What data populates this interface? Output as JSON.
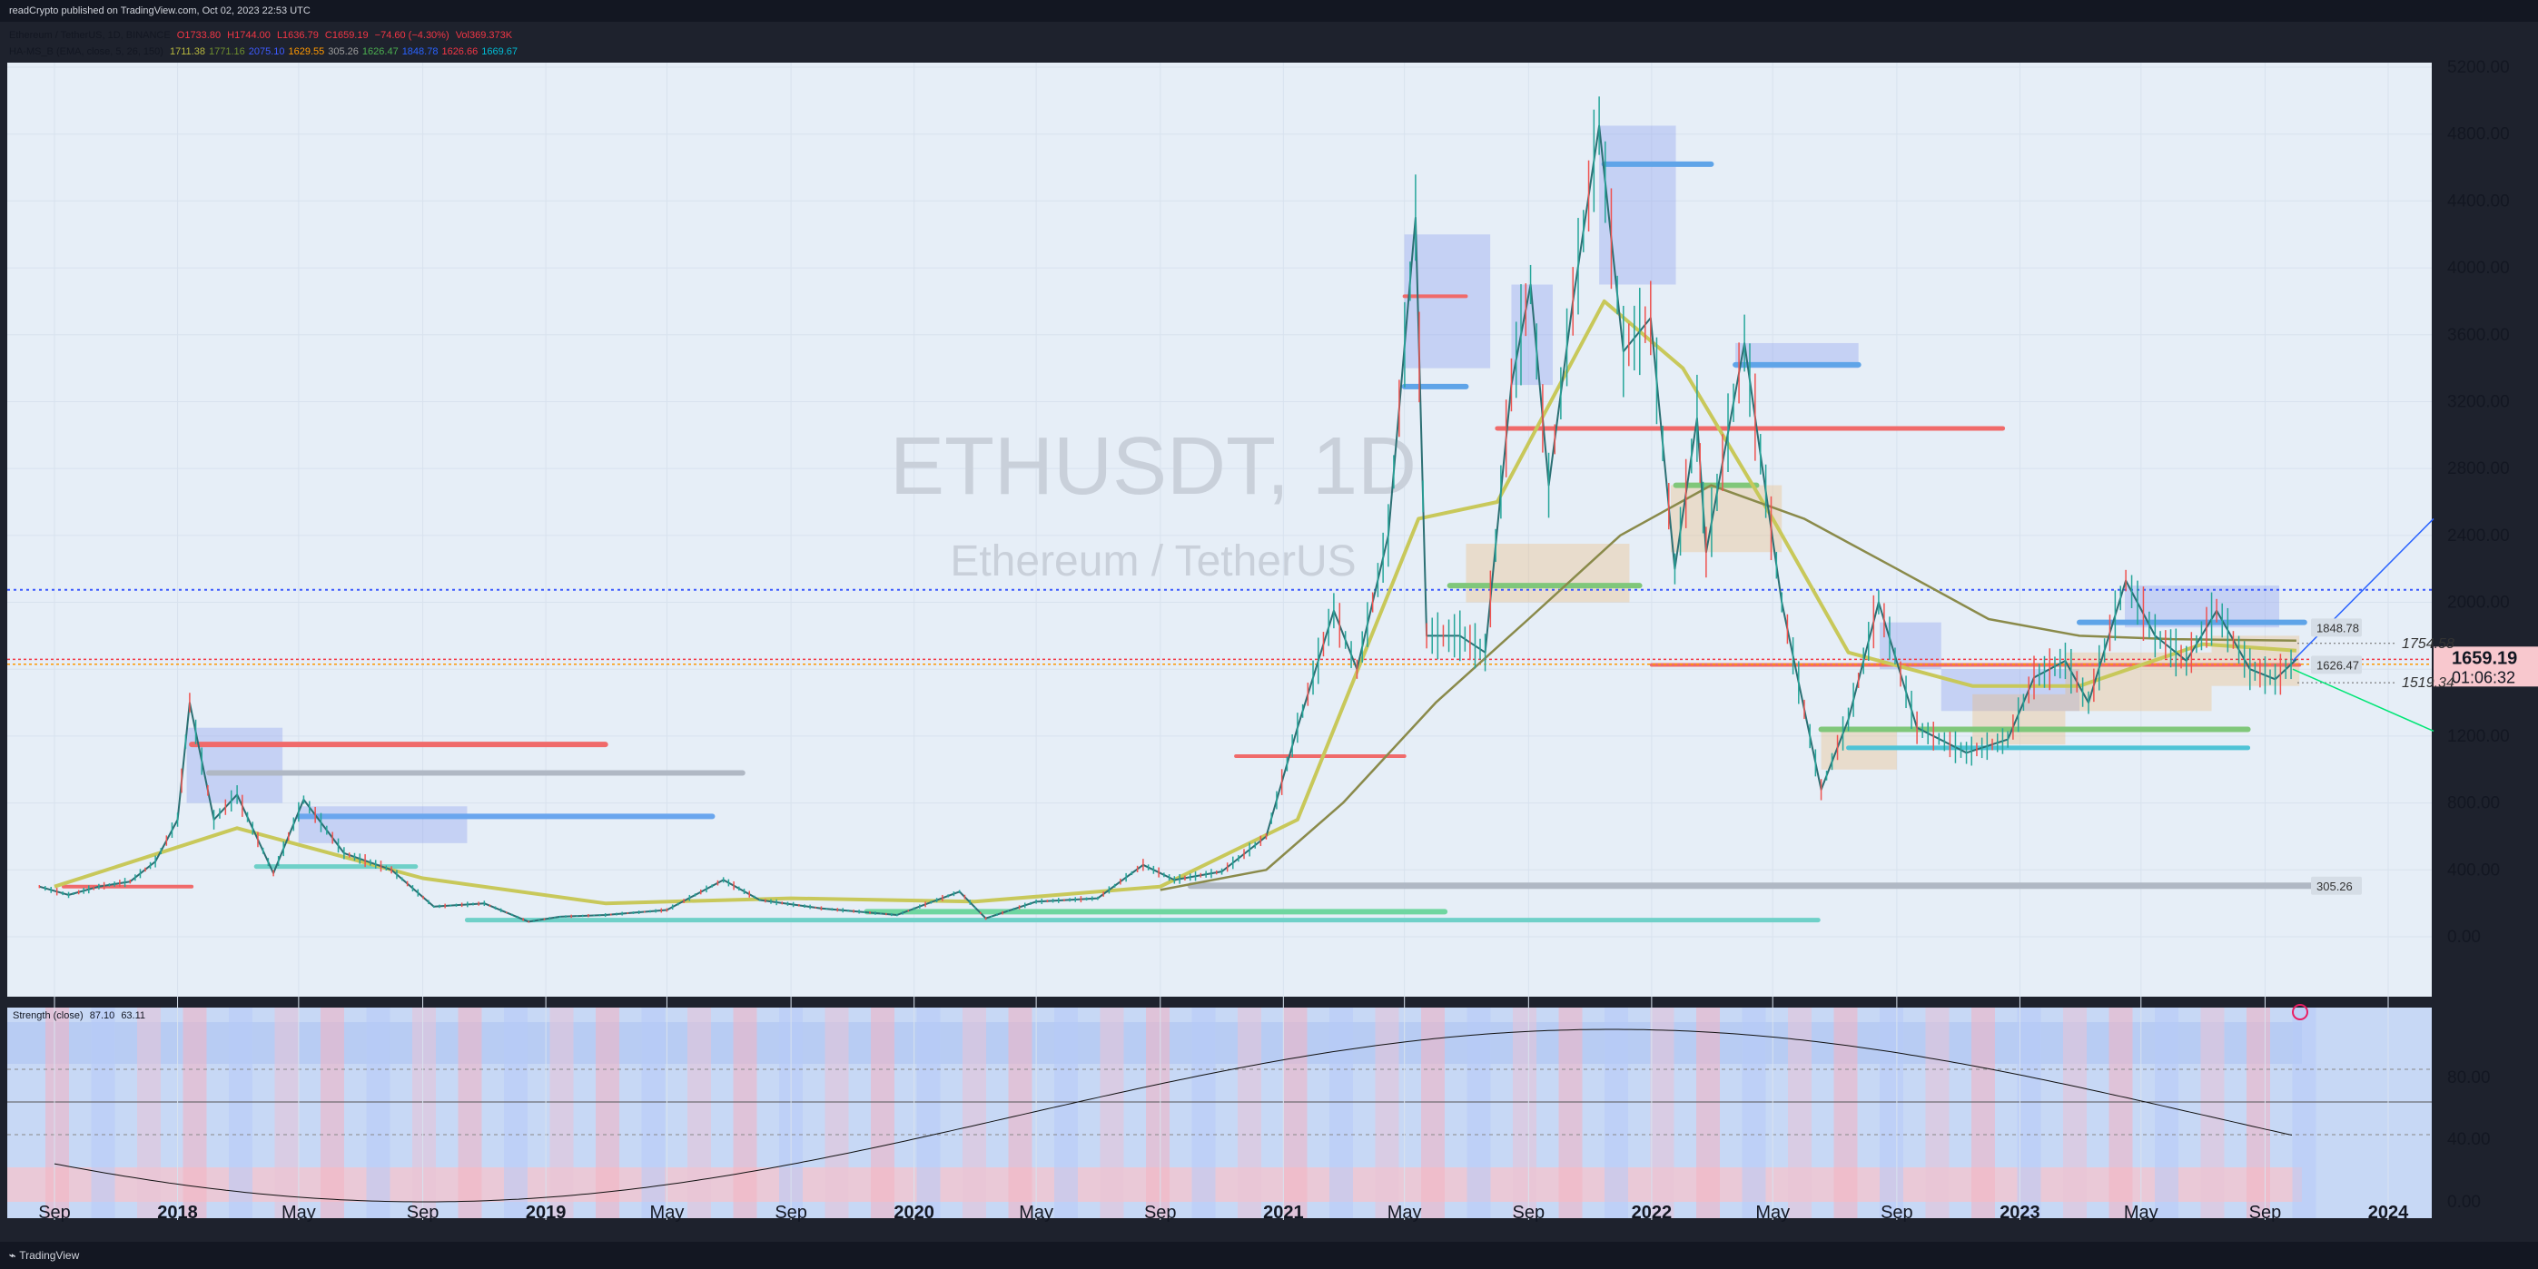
{
  "header": {
    "text": "readCrypto published on TradingView.com, Oct 02, 2023 22:53 UTC"
  },
  "footer": {
    "text": "TradingView"
  },
  "legend": {
    "symbol": "Ethereum / TetherUS, 1D, BINANCE",
    "o": "O1733.80",
    "h": "H1744.00",
    "l": "L1636.79",
    "c": "C1659.19",
    "chg": "−74.60 (−4.30%)",
    "vol": "Vol369.373K",
    "indicator": "HA-MS_B (EMA, close, 5, 26, 150)",
    "ind_values": [
      {
        "v": "1711.38",
        "color": "#b7b73e"
      },
      {
        "v": "1771.16",
        "color": "#6f8f2f"
      },
      {
        "v": "2075.10",
        "color": "#3d5afe"
      },
      {
        "v": "1629.55",
        "color": "#ff9800"
      },
      {
        "v": "305.26",
        "color": "#9e9e9e"
      },
      {
        "v": "1626.47",
        "color": "#4caf50"
      },
      {
        "v": "1848.78",
        "color": "#2962ff"
      },
      {
        "v": "1626.66",
        "color": "#f23645"
      },
      {
        "v": "1669.67",
        "color": "#00bcd4"
      }
    ]
  },
  "watermark": {
    "symbol": "ETHUSDT, 1D",
    "name": "Ethereum / TetherUS"
  },
  "price_badge": {
    "price": "1659.19",
    "countdown": "01:06:32"
  },
  "level_labels": [
    {
      "text": "1754.58",
      "price": 1754.58
    },
    {
      "text": "1519.34",
      "price": 1519.34
    }
  ],
  "box_labels": [
    {
      "text": "1848.78",
      "price": 1848.78
    },
    {
      "text": "1626.47",
      "price": 1626.47
    },
    {
      "text": "305.26",
      "price": 305.26
    }
  ],
  "strength": {
    "label": "Strength (close)",
    "v1": "87.10",
    "v2": "63.11"
  },
  "chart_data": {
    "type": "line",
    "title": "ETHUSDT, 1D",
    "y_axis": {
      "ticks": [
        "5200.00",
        "4800.00",
        "4400.00",
        "4000.00",
        "3600.00",
        "3200.00",
        "2800.00",
        "2400.00",
        "2000.00",
        "1600.00",
        "1200.00",
        "800.00",
        "400.00",
        "0.00"
      ],
      "ylim": [
        -180,
        5380
      ]
    },
    "x_axis": {
      "ticks": [
        "Sep",
        "2018",
        "May",
        "Sep",
        "2019",
        "May",
        "Sep",
        "2020",
        "May",
        "Sep",
        "2021",
        "May",
        "Sep",
        "2022",
        "May",
        "Sep",
        "2023",
        "May",
        "Sep",
        "2024"
      ]
    },
    "price_series": {
      "name": "ETHUSDT",
      "points": [
        [
          "2017-08-17",
          300
        ],
        [
          "2017-09-15",
          250
        ],
        [
          "2017-10-15",
          300
        ],
        [
          "2017-11-15",
          330
        ],
        [
          "2017-12-10",
          450
        ],
        [
          "2018-01-01",
          700
        ],
        [
          "2018-01-13",
          1400
        ],
        [
          "2018-02-06",
          700
        ],
        [
          "2018-03-01",
          850
        ],
        [
          "2018-04-06",
          380
        ],
        [
          "2018-05-06",
          820
        ],
        [
          "2018-06-15",
          500
        ],
        [
          "2018-08-01",
          400
        ],
        [
          "2018-09-12",
          180
        ],
        [
          "2018-11-01",
          200
        ],
        [
          "2018-12-15",
          90
        ],
        [
          "2019-01-15",
          120
        ],
        [
          "2019-03-01",
          130
        ],
        [
          "2019-05-01",
          160
        ],
        [
          "2019-06-26",
          340
        ],
        [
          "2019-08-01",
          220
        ],
        [
          "2019-10-01",
          170
        ],
        [
          "2019-12-15",
          130
        ],
        [
          "2020-02-15",
          270
        ],
        [
          "2020-03-12",
          110
        ],
        [
          "2020-05-01",
          210
        ],
        [
          "2020-07-01",
          230
        ],
        [
          "2020-08-15",
          430
        ],
        [
          "2020-09-15",
          340
        ],
        [
          "2020-11-01",
          390
        ],
        [
          "2020-12-15",
          600
        ],
        [
          "2021-01-15",
          1250
        ],
        [
          "2021-02-20",
          1950
        ],
        [
          "2021-03-15",
          1600
        ],
        [
          "2021-04-15",
          2400
        ],
        [
          "2021-05-12",
          4300
        ],
        [
          "2021-05-23",
          1800
        ],
        [
          "2021-06-25",
          1800
        ],
        [
          "2021-07-20",
          1700
        ],
        [
          "2021-08-15",
          3300
        ],
        [
          "2021-09-03",
          3900
        ],
        [
          "2021-09-21",
          2700
        ],
        [
          "2021-10-15",
          3800
        ],
        [
          "2021-11-10",
          4850
        ],
        [
          "2021-12-04",
          3500
        ],
        [
          "2021-12-31",
          3700
        ],
        [
          "2022-01-24",
          2200
        ],
        [
          "2022-02-15",
          3100
        ],
        [
          "2022-02-24",
          2300
        ],
        [
          "2022-04-03",
          3550
        ],
        [
          "2022-05-10",
          2000
        ],
        [
          "2022-06-18",
          880
        ],
        [
          "2022-07-15",
          1300
        ],
        [
          "2022-08-14",
          2000
        ],
        [
          "2022-09-21",
          1250
        ],
        [
          "2022-11-09",
          1100
        ],
        [
          "2022-12-20",
          1180
        ],
        [
          "2023-01-15",
          1550
        ],
        [
          "2023-02-15",
          1650
        ],
        [
          "2023-03-10",
          1400
        ],
        [
          "2023-04-16",
          2130
        ],
        [
          "2023-05-15",
          1800
        ],
        [
          "2023-06-15",
          1650
        ],
        [
          "2023-07-15",
          1950
        ],
        [
          "2023-08-17",
          1600
        ],
        [
          "2023-09-11",
          1540
        ],
        [
          "2023-10-02",
          1659
        ]
      ]
    },
    "ema_slow": {
      "name": "EMA",
      "points": [
        [
          "2017-09-01",
          300
        ],
        [
          "2018-03-01",
          650
        ],
        [
          "2018-09-01",
          350
        ],
        [
          "2019-03-01",
          200
        ],
        [
          "2019-09-01",
          230
        ],
        [
          "2020-03-01",
          210
        ],
        [
          "2020-09-01",
          300
        ],
        [
          "2021-01-15",
          700
        ],
        [
          "2021-05-15",
          2500
        ],
        [
          "2021-08-01",
          2600
        ],
        [
          "2021-11-15",
          3800
        ],
        [
          "2022-02-01",
          3400
        ],
        [
          "2022-05-01",
          2500
        ],
        [
          "2022-07-15",
          1700
        ],
        [
          "2022-11-15",
          1500
        ],
        [
          "2023-03-01",
          1500
        ],
        [
          "2023-07-01",
          1750
        ],
        [
          "2023-10-02",
          1711
        ]
      ]
    },
    "ema_step": {
      "name": "EMA",
      "points": [
        [
          "2020-09-01",
          280
        ],
        [
          "2020-12-15",
          400
        ],
        [
          "2021-03-01",
          800
        ],
        [
          "2021-06-01",
          1400
        ],
        [
          "2021-09-01",
          1900
        ],
        [
          "2021-12-01",
          2400
        ],
        [
          "2022-03-01",
          2700
        ],
        [
          "2022-06-01",
          2500
        ],
        [
          "2022-09-01",
          2200
        ],
        [
          "2022-12-01",
          1900
        ],
        [
          "2023-03-01",
          1800
        ],
        [
          "2023-06-01",
          1780
        ],
        [
          "2023-10-02",
          1771
        ]
      ]
    }
  }
}
